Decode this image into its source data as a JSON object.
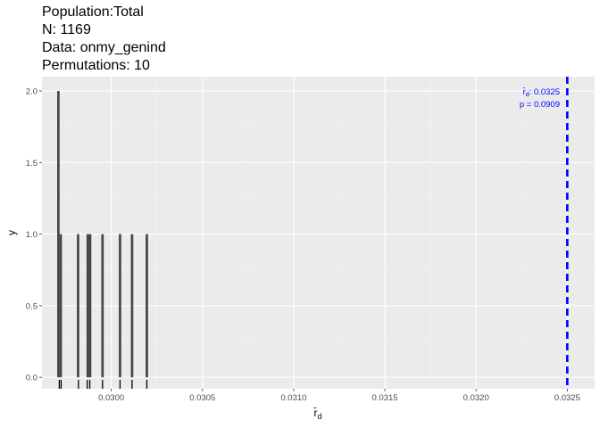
{
  "header": {
    "population": "Population:Total",
    "n": "N: 1169",
    "data": "Data: onmy_genind",
    "permutations": "Permutations: 10"
  },
  "chart_data": {
    "type": "bar",
    "subtype": "histogram",
    "xlabel": "r̄",
    "xlabel_subscript": "d",
    "ylabel": "y",
    "xlim": [
      0.02962,
      0.03265
    ],
    "ylim": [
      -0.08,
      2.1
    ],
    "x_ticks": [
      0.03,
      0.0305,
      0.031,
      0.0315,
      0.032,
      0.0325
    ],
    "x_tick_labels": [
      "0.0300",
      "0.0305",
      "0.0310",
      "0.0315",
      "0.0320",
      "0.0325"
    ],
    "y_ticks": [
      0.0,
      0.5,
      1.0,
      1.5,
      2.0
    ],
    "y_tick_labels": [
      "0.0",
      "0.5",
      "1.0",
      "1.5",
      "2.0"
    ],
    "grid": true,
    "bin_width": 1.34e-05,
    "bar_color": "#474747",
    "bars": [
      {
        "x": 0.02971,
        "count": 2
      },
      {
        "x": 0.029723,
        "count": 1
      },
      {
        "x": 0.029818,
        "count": 1
      },
      {
        "x": 0.029871,
        "count": 1
      },
      {
        "x": 0.029884,
        "count": 1
      },
      {
        "x": 0.029952,
        "count": 1
      },
      {
        "x": 0.030048,
        "count": 1
      },
      {
        "x": 0.030114,
        "count": 1
      },
      {
        "x": 0.030195,
        "count": 1
      }
    ],
    "rug": [
      0.029715,
      0.029725,
      0.02982,
      0.029868,
      0.029882,
      0.029952,
      0.030048,
      0.030114,
      0.030195
    ],
    "observed_line": {
      "x": 0.0325,
      "color": "#0000ff",
      "style": "dashed"
    },
    "annotation": {
      "symbol": "r̄",
      "subscript": "d",
      "value": ": 0.0325",
      "p_text": "p = 0.0909"
    }
  }
}
